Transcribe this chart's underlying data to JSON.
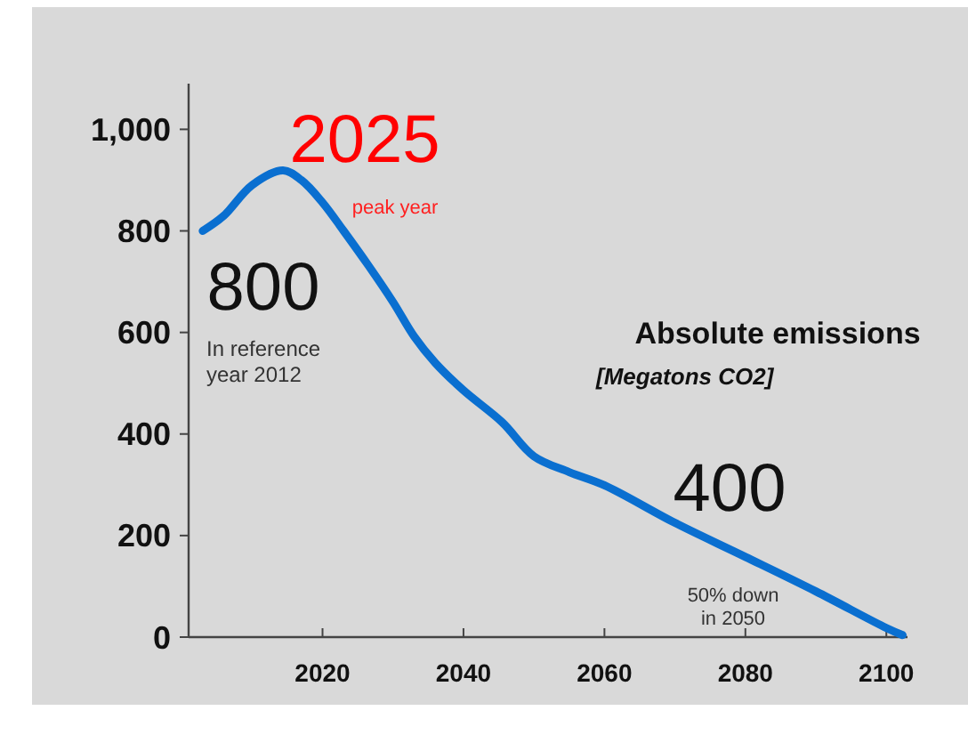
{
  "chart_data": {
    "type": "line",
    "title": "Absolute emissions",
    "subtitle": "[Megatons CO2]",
    "x": [
      2003,
      2006,
      2010,
      2014.4,
      2017,
      2020,
      2023,
      2026.5,
      2030,
      2033,
      2036,
      2040,
      2045.5,
      2050,
      2055,
      2060,
      2070,
      2080,
      2090,
      2100,
      2102.3
    ],
    "series": [
      {
        "color": "#0a6fd0",
        "values": [
          800,
          830,
          890,
          919,
          900,
          856,
          800,
          732,
          660,
          592,
          540,
          486,
          423,
          356,
          325,
          299,
          225,
          158,
          90,
          18,
          4
        ]
      }
    ],
    "xlim": [
      2001,
      2103
    ],
    "xticks": [
      2020,
      2040,
      2060,
      2080,
      2100
    ],
    "ylim": [
      0,
      1090
    ],
    "yticks": [
      0,
      200,
      400,
      600,
      800,
      {
        "value": 1000,
        "label": "1,000"
      }
    ],
    "grid": false,
    "marker": "none",
    "line_style": "solid",
    "annotations": [
      "2025",
      "peak year",
      "800",
      "In reference year 2012",
      "400",
      "50% down in 2050"
    ]
  }
}
